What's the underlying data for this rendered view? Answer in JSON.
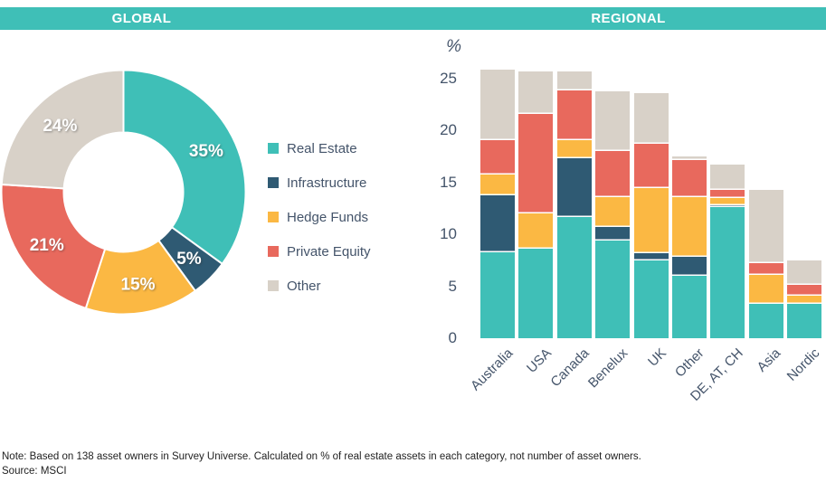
{
  "header": {
    "global_label": "GLOBAL",
    "regional_label": "REGIONAL",
    "band_color": "#3FBFB7"
  },
  "theme": {
    "accent_teal": "#3FBFB7",
    "dark_blue": "#2F5A73",
    "yellow": "#FBB843",
    "salmon": "#E8695D",
    "warm_gray": "#D8D1C8",
    "axis_text": "#44546A",
    "note_text": "#1F1F1F"
  },
  "chart_data": [
    {
      "type": "pie",
      "subtype": "donut",
      "title": "GLOBAL",
      "start_angle_deg": 0,
      "direction": "clockwise",
      "slices": [
        {
          "label": "Real Estate",
          "value": 35,
          "display": "35%",
          "color": "#3FBFB7"
        },
        {
          "label": "Infrastructure",
          "value": 5,
          "display": "5%",
          "color": "#2F5A73"
        },
        {
          "label": "Hedge Funds",
          "value": 15,
          "display": "15%",
          "color": "#FBB843"
        },
        {
          "label": "Private Equity",
          "value": 21,
          "display": "21%",
          "color": "#E8695D"
        },
        {
          "label": "Other",
          "value": 24,
          "display": "24%",
          "color": "#D8D1C8"
        }
      ]
    },
    {
      "type": "bar",
      "stacked": true,
      "title": "REGIONAL",
      "ylabel": "%",
      "ylim": [
        0,
        26
      ],
      "yticks": [
        0,
        5,
        10,
        15,
        20,
        25
      ],
      "grid": false,
      "legend_position": "between-panels",
      "categories": [
        "Australia",
        "USA",
        "Canada",
        "Benelux",
        "UK",
        "Other",
        "DE, AT, CH",
        "Asia",
        "Nordic"
      ],
      "series": [
        {
          "name": "Real Estate",
          "color": "#3FBFB7",
          "values": [
            8.3,
            8.6,
            11.7,
            9.4,
            7.5,
            6.0,
            12.6,
            3.3,
            3.3
          ]
        },
        {
          "name": "Infrastructure",
          "color": "#2F5A73",
          "values": [
            5.5,
            0,
            5.6,
            1.3,
            0.7,
            1.8,
            0.2,
            0,
            0
          ]
        },
        {
          "name": "Hedge Funds",
          "color": "#FBB843",
          "values": [
            2.0,
            3.4,
            1.8,
            2.9,
            6.3,
            5.8,
            0.7,
            2.8,
            0.8
          ]
        },
        {
          "name": "Private Equity",
          "color": "#E8695D",
          "values": [
            3.3,
            9.6,
            4.8,
            4.4,
            4.2,
            3.6,
            0.8,
            1.1,
            1.0
          ]
        },
        {
          "name": "Other",
          "color": "#D8D1C8",
          "values": [
            6.8,
            4.1,
            1.8,
            5.8,
            4.9,
            0.3,
            2.4,
            7.1,
            2.4
          ]
        }
      ]
    }
  ],
  "footnote": {
    "note": "Note: Based on 138 asset owners in Survey Universe.  Calculated on % of real estate assets in each category, not number of asset owners.",
    "source": "Source:  MSCI"
  }
}
